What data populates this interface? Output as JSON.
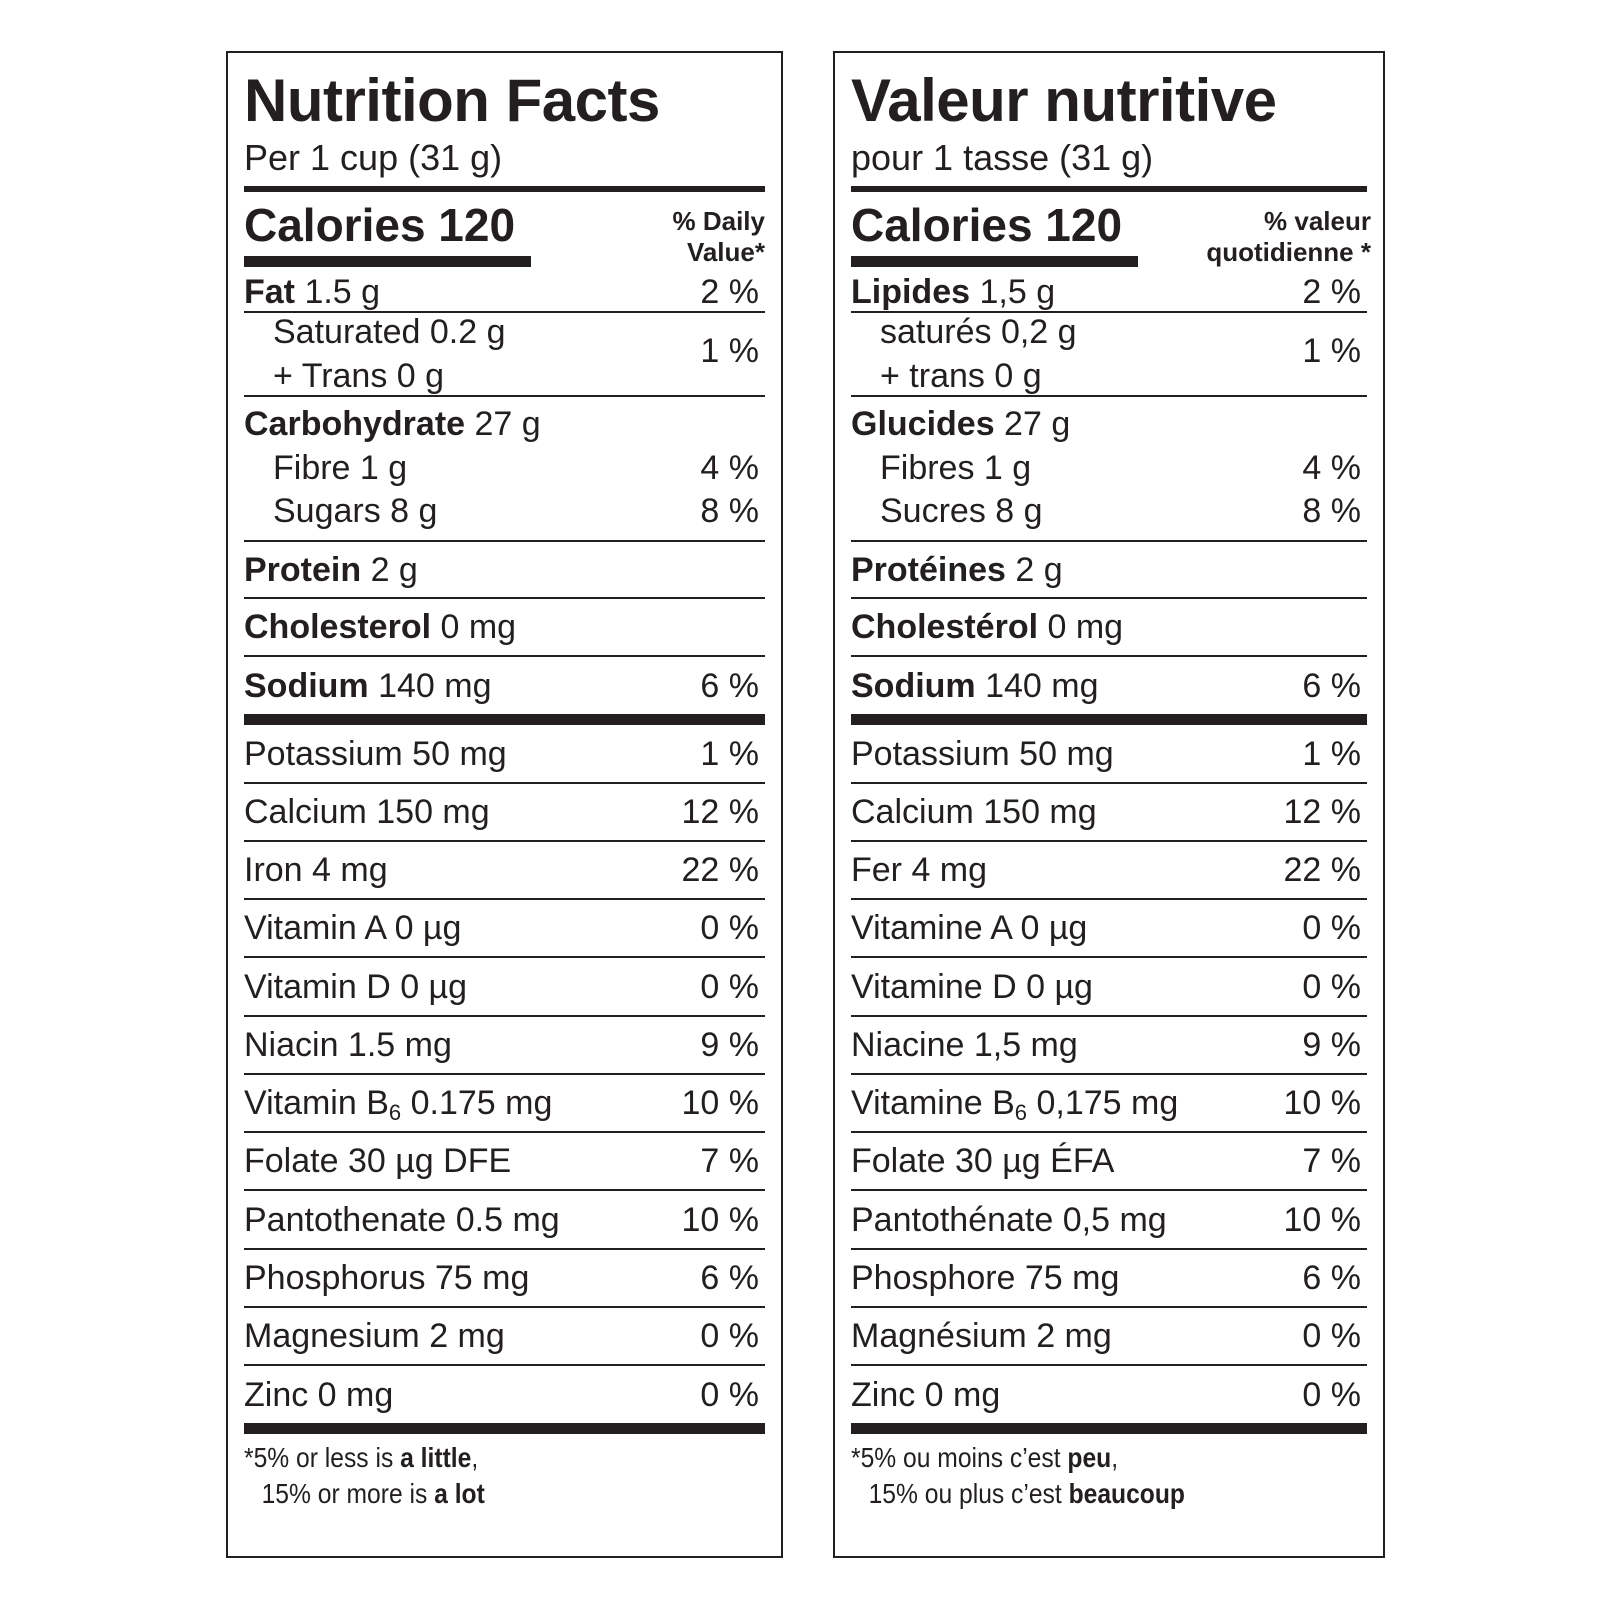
{
  "en": {
    "title": "Nutrition Facts",
    "serving": "Per 1 cup (31 g)",
    "calories_label": "Calories 120",
    "dv_line1": "% Daily",
    "dv_line2": "Value*",
    "fat": {
      "name": "Fat",
      "amount": " 1.5 g",
      "pct": "2 %"
    },
    "saturated": "Saturated 0.2 g",
    "trans": "+ Trans 0 g",
    "sat_trans_pct": "1 %",
    "carb": {
      "name": "Carbohydrate",
      "amount": " 27 g"
    },
    "fibre": {
      "label": "Fibre 1 g",
      "pct": "4 %"
    },
    "sugars": {
      "label": "Sugars 8 g",
      "pct": "8 %"
    },
    "protein": {
      "name": "Protein",
      "amount": " 2 g"
    },
    "cholesterol": {
      "name": "Cholesterol",
      "amount": " 0 mg"
    },
    "sodium": {
      "name": "Sodium",
      "amount": " 140 mg",
      "pct": "6 %"
    },
    "nutrients": [
      {
        "label": "Potassium 50 mg",
        "pct": "1 %"
      },
      {
        "label": "Calcium 150 mg",
        "pct": "12 %"
      },
      {
        "label": "Iron 4 mg",
        "pct": "22 %"
      },
      {
        "label": "Vitamin A 0 µg",
        "pct": "0 %"
      },
      {
        "label": "Vitamin D 0 µg",
        "pct": "0 %"
      },
      {
        "label": "Niacin 1.5 mg",
        "pct": "9 %"
      },
      {
        "label_pre": "Vitamin B",
        "label_sub": "6",
        "label_post": " 0.175 mg",
        "pct": "10 %"
      },
      {
        "label": "Folate 30 µg DFE",
        "pct": "7 %"
      },
      {
        "label": "Pantothenate 0.5 mg",
        "pct": "10 %"
      },
      {
        "label": "Phosphorus 75 mg",
        "pct": "6 %"
      },
      {
        "label": "Magnesium 2 mg",
        "pct": "0 %"
      },
      {
        "label": "Zinc 0 mg",
        "pct": "0 %"
      }
    ],
    "footnote": {
      "star": "*",
      "line1_pre": "5% or less is ",
      "line1_bold": "a little",
      "line1_post": ",",
      "line2_pre": "15% or more is ",
      "line2_bold": "a lot"
    }
  },
  "fr": {
    "title": "Valeur nutritive",
    "serving": "pour 1 tasse (31 g)",
    "calories_label": "Calories 120",
    "dv_line1": "% valeur",
    "dv_line2": "quotidienne *",
    "fat": {
      "name": "Lipides",
      "amount": " 1,5 g",
      "pct": "2 %"
    },
    "saturated": "saturés 0,2 g",
    "trans": "+ trans 0 g",
    "sat_trans_pct": "1 %",
    "carb": {
      "name": "Glucides",
      "amount": " 27 g"
    },
    "fibre": {
      "label": "Fibres 1 g",
      "pct": "4 %"
    },
    "sugars": {
      "label": "Sucres 8 g",
      "pct": "8 %"
    },
    "protein": {
      "name": "Protéines",
      "amount": " 2 g"
    },
    "cholesterol": {
      "name": "Cholestérol",
      "amount": " 0 mg"
    },
    "sodium": {
      "name": "Sodium",
      "amount": " 140 mg",
      "pct": "6 %"
    },
    "nutrients": [
      {
        "label": "Potassium 50 mg",
        "pct": "1 %"
      },
      {
        "label": "Calcium 150 mg",
        "pct": "12 %"
      },
      {
        "label": "Fer 4 mg",
        "pct": "22 %"
      },
      {
        "label": "Vitamine A 0 µg",
        "pct": "0 %"
      },
      {
        "label": "Vitamine D 0 µg",
        "pct": "0 %"
      },
      {
        "label": "Niacine 1,5 mg",
        "pct": "9 %"
      },
      {
        "label_pre": "Vitamine B",
        "label_sub": "6",
        "label_post": " 0,175 mg",
        "pct": "10 %"
      },
      {
        "label": "Folate 30 µg ÉFA",
        "pct": "7 %"
      },
      {
        "label": "Pantothénate 0,5 mg",
        "pct": "10 %"
      },
      {
        "label": "Phosphore 75 mg",
        "pct": "6 %"
      },
      {
        "label": "Magnésium 2 mg",
        "pct": "0 %"
      },
      {
        "label": "Zinc 0 mg",
        "pct": "0 %"
      }
    ],
    "footnote": {
      "star": "*",
      "line1_pre": "5% ou moins c’est ",
      "line1_bold": "peu",
      "line1_post": ",",
      "line2_pre": "15% ou plus c’est ",
      "line2_bold": "beaucoup"
    }
  }
}
